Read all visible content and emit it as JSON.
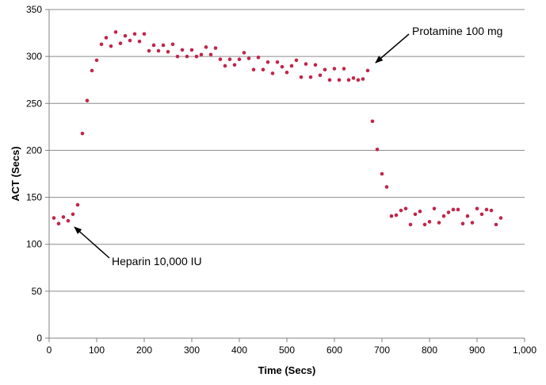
{
  "chart_data": {
    "type": "scatter",
    "title": "",
    "xlabel": "Time (Secs)",
    "ylabel": "ACT (Secs)",
    "xlim": [
      0,
      1000
    ],
    "ylim": [
      0,
      350
    ],
    "xticks": [
      0,
      100,
      200,
      300,
      400,
      500,
      600,
      700,
      800,
      900,
      1000
    ],
    "xtick_labels": [
      "0",
      "100",
      "200",
      "300",
      "400",
      "500",
      "600",
      "700",
      "800",
      "900",
      "1,000"
    ],
    "yticks": [
      0,
      50,
      100,
      150,
      200,
      250,
      300,
      350
    ],
    "ytick_labels": [
      "0",
      "50",
      "100",
      "150",
      "200",
      "250",
      "300",
      "350"
    ],
    "grid": "horizontal",
    "legend": "none",
    "marker_color": "#c0264a",
    "series": [
      {
        "x": [
          10,
          20,
          30,
          40,
          50,
          60,
          70,
          80,
          90,
          100,
          110,
          120,
          130,
          140,
          150,
          160,
          170,
          180,
          190,
          200,
          210,
          220,
          230,
          240,
          250,
          260,
          270,
          280,
          290,
          300,
          310,
          320,
          330,
          340,
          350,
          360,
          370,
          380,
          390,
          400,
          410,
          420,
          430,
          440,
          450,
          460,
          470,
          480,
          490,
          500,
          510,
          520,
          530,
          540,
          550,
          560,
          570,
          580,
          590,
          600,
          610,
          620,
          630,
          640,
          650,
          660,
          670,
          680,
          690,
          700,
          710,
          720,
          730,
          740,
          750,
          760,
          770,
          780,
          790,
          800,
          810,
          820,
          830,
          840,
          850,
          860,
          870,
          880,
          890,
          900,
          910,
          920,
          930,
          940,
          950
        ],
        "y": [
          128,
          122,
          129,
          125,
          132,
          142,
          218,
          253,
          285,
          296,
          313,
          320,
          311,
          326,
          314,
          322,
          317,
          324,
          316,
          324,
          306,
          312,
          306,
          312,
          305,
          313,
          300,
          307,
          300,
          307,
          300,
          302,
          310,
          302,
          309,
          297,
          290,
          297,
          291,
          297,
          304,
          298,
          286,
          299,
          286,
          294,
          282,
          294,
          289,
          283,
          290,
          296,
          278,
          292,
          278,
          291,
          280,
          286,
          275,
          287,
          275,
          287,
          275,
          277,
          275,
          276,
          285,
          231,
          201,
          175,
          161,
          130,
          131,
          136,
          138,
          121,
          132,
          135,
          121,
          124,
          138,
          123,
          130,
          134,
          137,
          137,
          122,
          130,
          123,
          138,
          132,
          137,
          136,
          121,
          128
        ]
      }
    ],
    "annotations": [
      {
        "text": "Protamine 100 mg",
        "x": 685,
        "y": 289
      },
      {
        "text": "Heparin 10,000 IU",
        "x": 55,
        "y": 116
      }
    ]
  }
}
